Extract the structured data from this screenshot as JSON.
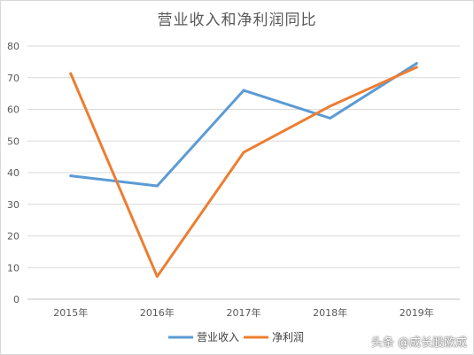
{
  "chart_data": {
    "type": "line",
    "title": "营业收入和净利润同比",
    "categories": [
      "2015年",
      "2016年",
      "2017年",
      "2018年",
      "2019年"
    ],
    "yticks": [
      0,
      10,
      20,
      30,
      40,
      50,
      60,
      70,
      80
    ],
    "ylim": [
      0,
      80
    ],
    "grid": true,
    "legend_position": "bottom",
    "series": [
      {
        "name": "营业收入",
        "color": "#5b9bd5",
        "values": [
          39,
          35.8,
          66,
          57.2,
          74.5
        ]
      },
      {
        "name": "净利润",
        "color": "#ed7d31",
        "values": [
          71.3,
          7.2,
          46.4,
          61,
          73.3
        ]
      }
    ]
  },
  "watermark": "头条 @成长股欧成"
}
